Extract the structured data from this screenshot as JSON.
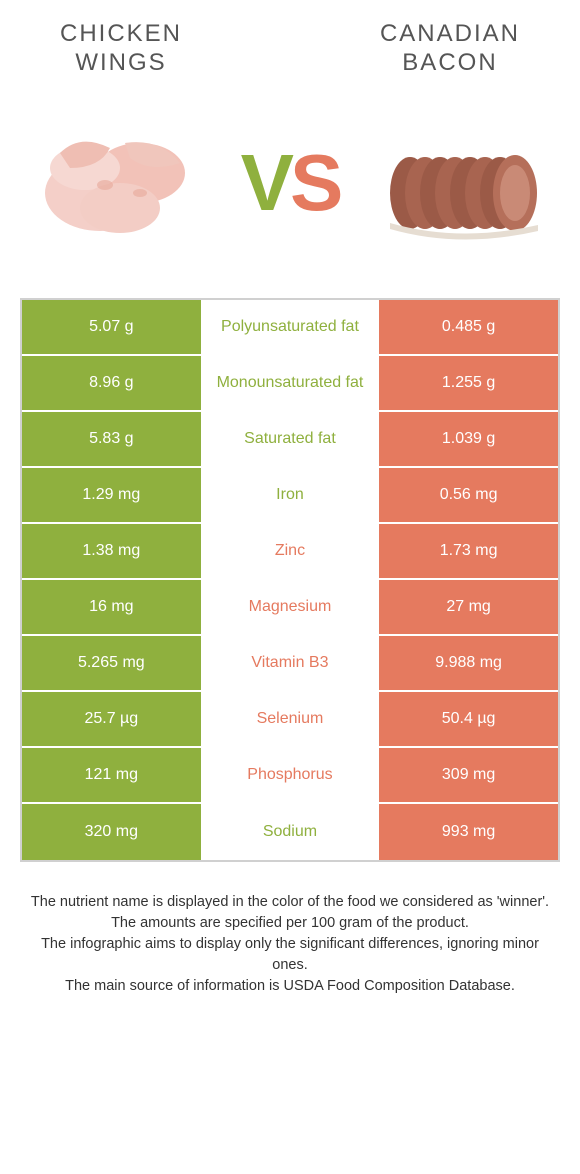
{
  "colors": {
    "left": "#8fb03e",
    "right": "#e57a5f",
    "border": "#d0d0d0",
    "title_text": "#555555",
    "body_text": "#333333",
    "cell_text": "#ffffff",
    "background": "#ffffff"
  },
  "header": {
    "left_title": "CHICKEN\nWINGS",
    "right_title": "CANADIAN\nBACON",
    "vs_v": "V",
    "vs_s": "S"
  },
  "table": {
    "rows": [
      {
        "left": "5.07 g",
        "label": "Polyunsaturated fat",
        "right": "0.485 g",
        "winner": "left"
      },
      {
        "left": "8.96 g",
        "label": "Monounsaturated fat",
        "right": "1.255 g",
        "winner": "left"
      },
      {
        "left": "5.83 g",
        "label": "Saturated fat",
        "right": "1.039 g",
        "winner": "left"
      },
      {
        "left": "1.29 mg",
        "label": "Iron",
        "right": "0.56 mg",
        "winner": "left"
      },
      {
        "left": "1.38 mg",
        "label": "Zinc",
        "right": "1.73 mg",
        "winner": "right"
      },
      {
        "left": "16 mg",
        "label": "Magnesium",
        "right": "27 mg",
        "winner": "right"
      },
      {
        "left": "5.265 mg",
        "label": "Vitamin B3",
        "right": "9.988 mg",
        "winner": "right"
      },
      {
        "left": "25.7 µg",
        "label": "Selenium",
        "right": "50.4 µg",
        "winner": "right"
      },
      {
        "left": "121 mg",
        "label": "Phosphorus",
        "right": "309 mg",
        "winner": "right"
      },
      {
        "left": "320 mg",
        "label": "Sodium",
        "right": "993 mg",
        "winner": "left"
      }
    ]
  },
  "footnotes": [
    "The nutrient name is displayed in the color of the food we considered as 'winner'.",
    "The amounts are specified per 100 gram of the product.",
    "The infographic aims to display only the significant differences, ignoring minor ones.",
    "The main source of information is USDA Food Composition Database."
  ]
}
